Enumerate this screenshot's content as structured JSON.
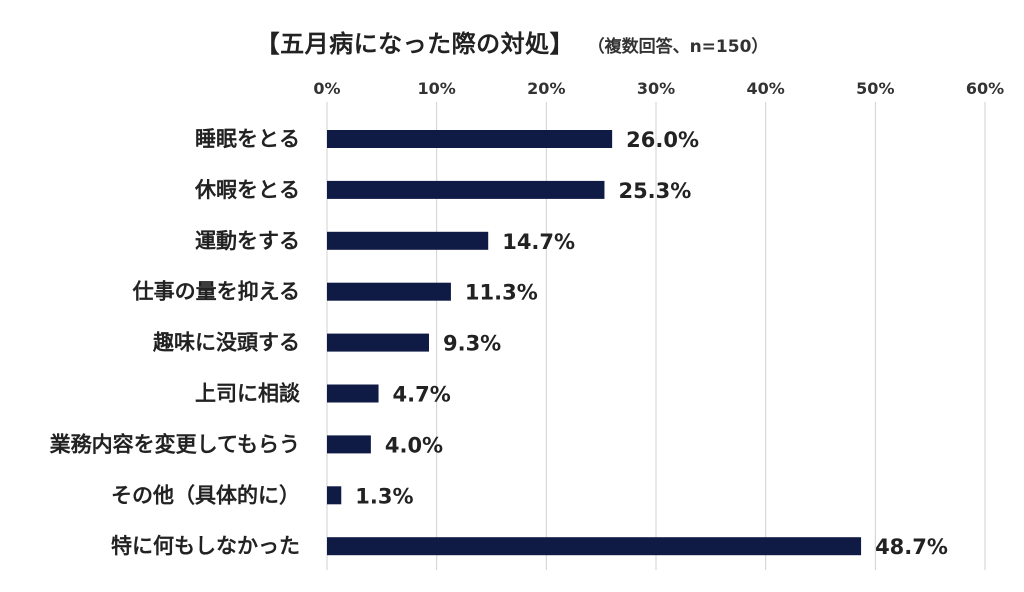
{
  "chart_data": {
    "type": "bar",
    "orientation": "horizontal",
    "title": "【五月病になった際の対処】",
    "subtitle": "（複数回答、n=150）",
    "categories": [
      "睡眠をとる",
      "休暇をとる",
      "運動をする",
      "仕事の量を抑える",
      "趣味に没頭する",
      "上司に相談",
      "業務内容を変更してもらう",
      "その他（具体的に）",
      "特に何もしなかった"
    ],
    "values": [
      26.0,
      25.3,
      14.7,
      11.3,
      9.3,
      4.7,
      4.0,
      1.3,
      48.7
    ],
    "value_labels": [
      "26.0%",
      "25.3%",
      "14.7%",
      "11.3%",
      "9.3%",
      "4.7%",
      "4.0%",
      "1.3%",
      "48.7%"
    ],
    "xlim": [
      0,
      60
    ],
    "ticks": [
      "0%",
      "10%",
      "20%",
      "30%",
      "40%",
      "50%",
      "60%"
    ],
    "tick_values": [
      0,
      10,
      20,
      30,
      40,
      50,
      60
    ],
    "grid": true,
    "legend": "none",
    "bar_color": "#0f1a45",
    "grid_color": "#d0d0d0"
  }
}
